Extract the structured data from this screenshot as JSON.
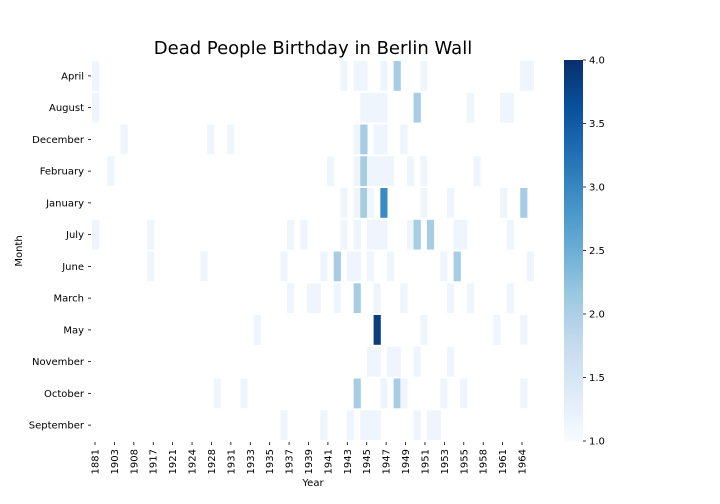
{
  "chart_data": {
    "type": "heatmap",
    "title": "Dead People Birthday in Berlin Wall",
    "xlabel": "Year",
    "ylabel": "Month",
    "x_tick_labels": [
      "1881",
      "1903",
      "1908",
      "1917",
      "1921",
      "1924",
      "1928",
      "1931",
      "1933",
      "1935",
      "1937",
      "1939",
      "1941",
      "1943",
      "1945",
      "1947",
      "1949",
      "1951",
      "1953",
      "1955",
      "1958",
      "1961",
      "1964"
    ],
    "rows": [
      "April",
      "August",
      "December",
      "February",
      "January",
      "July",
      "June",
      "March",
      "May",
      "November",
      "October",
      "September"
    ],
    "colormap": "Blues",
    "colorbar": {
      "min": 1.0,
      "max": 4.0,
      "ticks": [
        "1.0",
        "1.5",
        "2.0",
        "2.5",
        "3.0",
        "3.5",
        "4.0"
      ]
    },
    "colors": {
      "low": "#f7fbff",
      "mid": "#a6cee4",
      "high": "#08306b"
    },
    "cells": [
      {
        "row": "April",
        "x": 1881,
        "value": 1
      },
      {
        "row": "April",
        "x": 1937,
        "value": 1
      },
      {
        "row": "April",
        "x": 1939,
        "value": 1
      },
      {
        "row": "April",
        "x": 1940,
        "value": 1
      },
      {
        "row": "April",
        "x": 1943,
        "value": 1
      },
      {
        "row": "April",
        "x": 1945,
        "value": 2
      },
      {
        "row": "April",
        "x": 1949,
        "value": 1
      },
      {
        "row": "April",
        "x": 1964,
        "value": 1
      },
      {
        "row": "April",
        "x": 1965,
        "value": 1
      },
      {
        "row": "August",
        "x": 1881,
        "value": 1
      },
      {
        "row": "August",
        "x": 1940,
        "value": 1
      },
      {
        "row": "August",
        "x": 1941,
        "value": 1
      },
      {
        "row": "August",
        "x": 1942,
        "value": 1
      },
      {
        "row": "August",
        "x": 1943,
        "value": 1
      },
      {
        "row": "August",
        "x": 1948,
        "value": 2
      },
      {
        "row": "August",
        "x": 1956,
        "value": 1
      },
      {
        "row": "August",
        "x": 1961,
        "value": 1
      },
      {
        "row": "August",
        "x": 1962,
        "value": 1
      },
      {
        "row": "December",
        "x": 1904,
        "value": 1
      },
      {
        "row": "December",
        "x": 1917,
        "value": 1
      },
      {
        "row": "December",
        "x": 1920,
        "value": 1
      },
      {
        "row": "December",
        "x": 1939,
        "value": 1
      },
      {
        "row": "December",
        "x": 1940,
        "value": 2
      },
      {
        "row": "December",
        "x": 1942,
        "value": 1
      },
      {
        "row": "December",
        "x": 1943,
        "value": 1
      },
      {
        "row": "December",
        "x": 1946,
        "value": 1
      },
      {
        "row": "February",
        "x": 1902,
        "value": 1
      },
      {
        "row": "February",
        "x": 1935,
        "value": 1
      },
      {
        "row": "February",
        "x": 1939,
        "value": 1
      },
      {
        "row": "February",
        "x": 1940,
        "value": 2
      },
      {
        "row": "February",
        "x": 1941,
        "value": 1
      },
      {
        "row": "February",
        "x": 1942,
        "value": 1
      },
      {
        "row": "February",
        "x": 1943,
        "value": 1
      },
      {
        "row": "February",
        "x": 1944,
        "value": 1
      },
      {
        "row": "February",
        "x": 1947,
        "value": 1
      },
      {
        "row": "February",
        "x": 1949,
        "value": 1
      },
      {
        "row": "February",
        "x": 1957,
        "value": 1
      },
      {
        "row": "January",
        "x": 1937,
        "value": 1
      },
      {
        "row": "January",
        "x": 1939,
        "value": 1
      },
      {
        "row": "January",
        "x": 1940,
        "value": 2
      },
      {
        "row": "January",
        "x": 1941,
        "value": 1
      },
      {
        "row": "January",
        "x": 1943,
        "value": 3
      },
      {
        "row": "January",
        "x": 1949,
        "value": 1
      },
      {
        "row": "January",
        "x": 1953,
        "value": 1
      },
      {
        "row": "January",
        "x": 1961,
        "value": 1
      },
      {
        "row": "January",
        "x": 1964,
        "value": 2
      },
      {
        "row": "July",
        "x": 1881,
        "value": 1
      },
      {
        "row": "July",
        "x": 1908,
        "value": 1
      },
      {
        "row": "July",
        "x": 1929,
        "value": 1
      },
      {
        "row": "July",
        "x": 1931,
        "value": 1
      },
      {
        "row": "July",
        "x": 1937,
        "value": 1
      },
      {
        "row": "July",
        "x": 1939,
        "value": 1
      },
      {
        "row": "July",
        "x": 1941,
        "value": 1
      },
      {
        "row": "July",
        "x": 1942,
        "value": 1
      },
      {
        "row": "July",
        "x": 1943,
        "value": 1
      },
      {
        "row": "July",
        "x": 1947,
        "value": 1
      },
      {
        "row": "July",
        "x": 1948,
        "value": 2
      },
      {
        "row": "July",
        "x": 1950,
        "value": 2
      },
      {
        "row": "July",
        "x": 1954,
        "value": 1
      },
      {
        "row": "July",
        "x": 1955,
        "value": 1
      },
      {
        "row": "July",
        "x": 1962,
        "value": 1
      },
      {
        "row": "June",
        "x": 1908,
        "value": 1
      },
      {
        "row": "June",
        "x": 1916,
        "value": 1
      },
      {
        "row": "June",
        "x": 1928,
        "value": 1
      },
      {
        "row": "June",
        "x": 1934,
        "value": 1
      },
      {
        "row": "June",
        "x": 1936,
        "value": 2
      },
      {
        "row": "June",
        "x": 1938,
        "value": 1
      },
      {
        "row": "June",
        "x": 1939,
        "value": 1
      },
      {
        "row": "June",
        "x": 1941,
        "value": 1
      },
      {
        "row": "June",
        "x": 1944,
        "value": 1
      },
      {
        "row": "June",
        "x": 1952,
        "value": 1
      },
      {
        "row": "June",
        "x": 1954,
        "value": 2
      },
      {
        "row": "June",
        "x": 1965,
        "value": 1
      },
      {
        "row": "March",
        "x": 1929,
        "value": 1
      },
      {
        "row": "March",
        "x": 1932,
        "value": 1
      },
      {
        "row": "March",
        "x": 1933,
        "value": 1
      },
      {
        "row": "March",
        "x": 1936,
        "value": 1
      },
      {
        "row": "March",
        "x": 1939,
        "value": 2
      },
      {
        "row": "March",
        "x": 1942,
        "value": 1
      },
      {
        "row": "March",
        "x": 1946,
        "value": 1
      },
      {
        "row": "March",
        "x": 1953,
        "value": 1
      },
      {
        "row": "March",
        "x": 1956,
        "value": 1
      },
      {
        "row": "March",
        "x": 1962,
        "value": 1
      },
      {
        "row": "May",
        "x": 1924,
        "value": 1
      },
      {
        "row": "May",
        "x": 1942,
        "value": 4
      },
      {
        "row": "May",
        "x": 1949,
        "value": 1
      },
      {
        "row": "May",
        "x": 1960,
        "value": 1
      },
      {
        "row": "May",
        "x": 1964,
        "value": 1
      },
      {
        "row": "November",
        "x": 1941,
        "value": 1
      },
      {
        "row": "November",
        "x": 1942,
        "value": 1
      },
      {
        "row": "November",
        "x": 1944,
        "value": 1
      },
      {
        "row": "November",
        "x": 1945,
        "value": 1
      },
      {
        "row": "November",
        "x": 1948,
        "value": 1
      },
      {
        "row": "November",
        "x": 1953,
        "value": 1
      },
      {
        "row": "October",
        "x": 1918,
        "value": 1
      },
      {
        "row": "October",
        "x": 1922,
        "value": 1
      },
      {
        "row": "October",
        "x": 1939,
        "value": 2
      },
      {
        "row": "October",
        "x": 1943,
        "value": 1
      },
      {
        "row": "October",
        "x": 1945,
        "value": 2
      },
      {
        "row": "October",
        "x": 1946,
        "value": 1
      },
      {
        "row": "October",
        "x": 1952,
        "value": 1
      },
      {
        "row": "October",
        "x": 1955,
        "value": 1
      },
      {
        "row": "October",
        "x": 1964,
        "value": 1
      },
      {
        "row": "September",
        "x": 1928,
        "value": 1
      },
      {
        "row": "September",
        "x": 1934,
        "value": 1
      },
      {
        "row": "September",
        "x": 1938,
        "value": 1
      },
      {
        "row": "September",
        "x": 1940,
        "value": 1
      },
      {
        "row": "September",
        "x": 1941,
        "value": 1
      },
      {
        "row": "September",
        "x": 1942,
        "value": 1
      },
      {
        "row": "September",
        "x": 1948,
        "value": 1
      },
      {
        "row": "September",
        "x": 1950,
        "value": 1
      },
      {
        "row": "September",
        "x": 1951,
        "value": 1
      }
    ]
  }
}
